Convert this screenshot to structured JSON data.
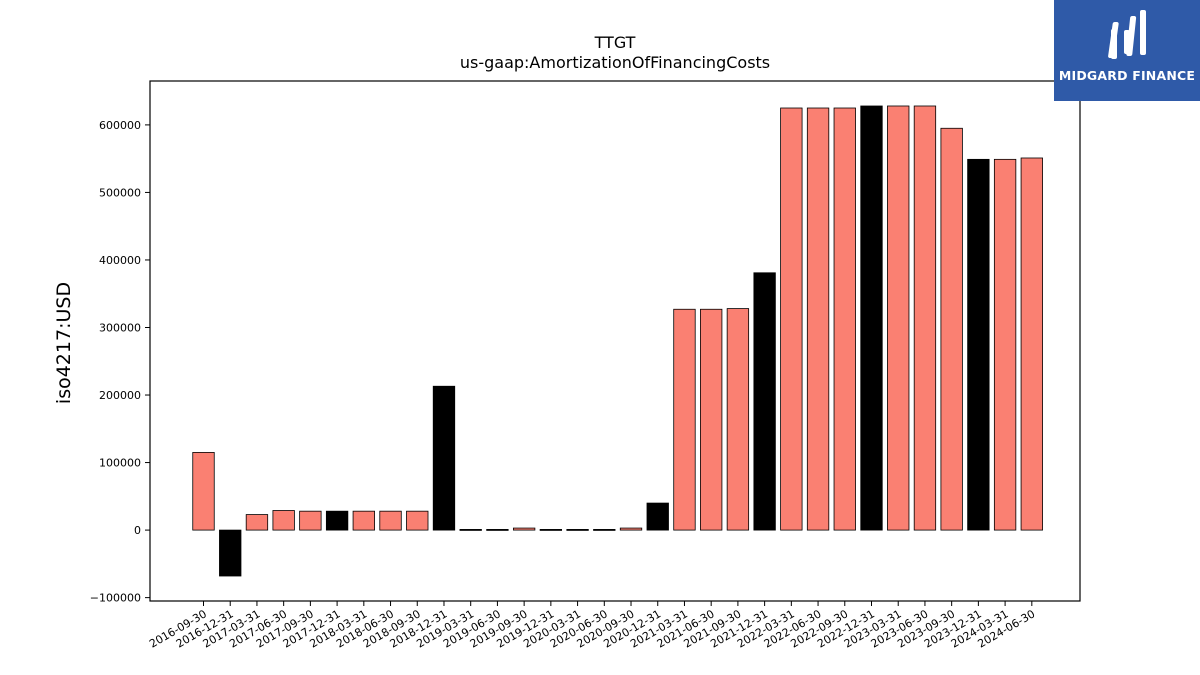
{
  "chart_data": {
    "type": "bar",
    "title": "TTGT",
    "subtitle": "us-gaap:AmortizationOfFinancingCosts",
    "xlabel": "",
    "ylabel": "iso4217:USD",
    "ylim": [
      -105000,
      665000
    ],
    "yticks": [
      -100000,
      0,
      100000,
      200000,
      300000,
      400000,
      500000,
      600000
    ],
    "grid": false,
    "categories": [
      "2016-09-30",
      "2016-12-31",
      "2017-03-31",
      "2017-06-30",
      "2017-09-30",
      "2017-12-31",
      "2018-03-31",
      "2018-06-30",
      "2018-09-30",
      "2018-12-31",
      "2019-03-31",
      "2019-06-30",
      "2019-09-30",
      "2019-12-31",
      "2020-03-31",
      "2020-06-30",
      "2020-09-30",
      "2020-12-31",
      "2021-03-31",
      "2021-06-30",
      "2021-09-30",
      "2021-12-31",
      "2022-03-31",
      "2022-06-30",
      "2022-09-30",
      "2022-12-31",
      "2023-03-31",
      "2023-06-30",
      "2023-09-30",
      "2023-12-31",
      "2024-03-31",
      "2024-06-30"
    ],
    "values": [
      115000,
      -68000,
      23000,
      29000,
      28000,
      28000,
      28000,
      28000,
      28000,
      213000,
      1000,
      1000,
      3000,
      1000,
      1000,
      1000,
      3000,
      40000,
      327000,
      327000,
      328000,
      381000,
      625000,
      625000,
      625000,
      628000,
      628000,
      628000,
      595000,
      549000,
      549000,
      551000
    ],
    "colors": [
      "salmon",
      "black",
      "salmon",
      "salmon",
      "salmon",
      "black",
      "salmon",
      "salmon",
      "salmon",
      "black",
      "black",
      "black",
      "salmon",
      "black",
      "black",
      "black",
      "salmon",
      "black",
      "salmon",
      "salmon",
      "salmon",
      "black",
      "salmon",
      "salmon",
      "salmon",
      "black",
      "salmon",
      "salmon",
      "salmon",
      "black",
      "salmon",
      "salmon"
    ],
    "palette": {
      "salmon": "#fa8072",
      "black": "#000000"
    }
  },
  "logo": {
    "text": "MIDGARD FINANCE",
    "background": "#2f5aa8"
  }
}
